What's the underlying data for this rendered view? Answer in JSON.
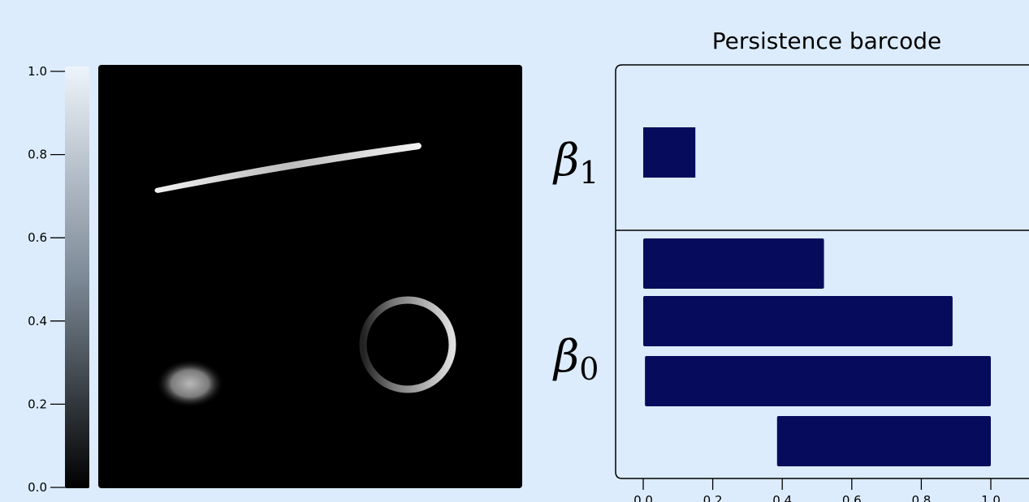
{
  "chart_data": [
    {
      "type": "heatmap",
      "title": "",
      "colormap": "gray",
      "colorbar": {
        "range": [
          0.0,
          1.0
        ],
        "ticks": [
          0.0,
          0.2,
          0.4,
          0.6,
          0.8,
          1.0
        ],
        "tick_labels": [
          "0.0",
          "0.2",
          "0.4",
          "0.6",
          "0.8",
          "1.0"
        ]
      },
      "shapes": [
        {
          "kind": "line",
          "description": "bright diagonal line",
          "intensity": 0.85
        },
        {
          "kind": "ring",
          "description": "ring with intensity gradient",
          "intensity": 0.75
        },
        {
          "kind": "blob",
          "description": "soft gaussian blob",
          "intensity": 0.6
        }
      ]
    },
    {
      "type": "bar",
      "orientation": "horizontal",
      "title": "Persistence barcode",
      "xlim": [
        0.0,
        1.0
      ],
      "x_ticks": [
        0.0,
        0.2,
        0.4,
        0.6,
        0.8,
        1.0
      ],
      "x_tick_labels": [
        "0.0",
        "0.2",
        "0.4",
        "0.6",
        "0.8",
        "1.0"
      ],
      "groups": [
        {
          "label": "β",
          "subscript": "1",
          "bars": [
            {
              "birth": 0.0,
              "death": 0.15
            }
          ]
        },
        {
          "label": "β",
          "subscript": "0",
          "bars": [
            {
              "birth": 0.0,
              "death": 0.52
            },
            {
              "birth": 0.0,
              "death": 0.89
            },
            {
              "birth": 0.005,
              "death": 1.0
            },
            {
              "birth": 0.385,
              "death": 1.0
            }
          ]
        }
      ],
      "bar_color": "#060b5c"
    }
  ]
}
